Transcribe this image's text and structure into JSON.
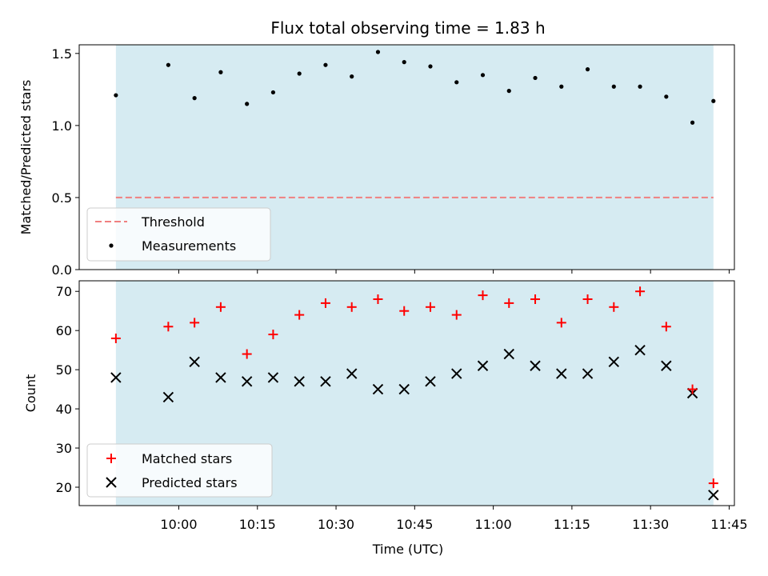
{
  "chart_data": [
    {
      "type": "scatter",
      "title": "Flux total observing time = 1.83 h",
      "xlabel": "",
      "ylabel": "Matched/Predicted stars",
      "ylim": [
        0,
        1.56
      ],
      "yticks": [
        "0.0",
        "0.5",
        "1.0",
        "1.5"
      ],
      "shaded_span": {
        "start": "09:48",
        "end": "11:42",
        "color": "#add8e6"
      },
      "threshold": {
        "name": "Threshold",
        "value": 0.5,
        "color": "#f08080",
        "style": "dashed"
      },
      "x": [
        "09:48",
        "09:58",
        "10:03",
        "10:08",
        "10:13",
        "10:18",
        "10:23",
        "10:28",
        "10:33",
        "10:38",
        "10:43",
        "10:48",
        "10:53",
        "10:58",
        "11:03",
        "11:08",
        "11:13",
        "11:18",
        "11:23",
        "11:28",
        "11:33",
        "11:38",
        "11:42"
      ],
      "series": [
        {
          "name": "Measurements",
          "color": "#000000",
          "values": [
            1.21,
            1.42,
            1.19,
            1.37,
            1.15,
            1.23,
            1.36,
            1.42,
            1.34,
            1.51,
            1.44,
            1.41,
            1.3,
            1.35,
            1.24,
            1.33,
            1.27,
            1.39,
            1.27,
            1.27,
            1.2,
            1.02,
            1.17
          ]
        }
      ],
      "legend": {
        "placement": "lower-left",
        "entries": [
          "Threshold",
          "Measurements"
        ]
      }
    },
    {
      "type": "scatter",
      "title": "",
      "xlabel": "Time (UTC)",
      "ylabel": "Count",
      "ylim": [
        15.3,
        72.7
      ],
      "yticks": [
        "20",
        "30",
        "40",
        "50",
        "60",
        "70"
      ],
      "xticks": [
        "10:00",
        "10:15",
        "10:30",
        "10:45",
        "11:00",
        "11:15",
        "11:30",
        "11:45"
      ],
      "xlim": [
        "09:41",
        "11:46"
      ],
      "shaded_span": {
        "start": "09:48",
        "end": "11:42",
        "color": "#add8e6"
      },
      "x": [
        "09:48",
        "09:58",
        "10:03",
        "10:08",
        "10:13",
        "10:18",
        "10:23",
        "10:28",
        "10:33",
        "10:38",
        "10:43",
        "10:48",
        "10:53",
        "10:58",
        "11:03",
        "11:08",
        "11:13",
        "11:18",
        "11:23",
        "11:28",
        "11:33",
        "11:38",
        "11:42"
      ],
      "series": [
        {
          "name": "Matched stars",
          "marker": "plus",
          "color": "#ff0000",
          "values": [
            58,
            61,
            62,
            66,
            54,
            59,
            64,
            67,
            66,
            68,
            65,
            66,
            64,
            69,
            67,
            68,
            62,
            68,
            66,
            70,
            61,
            45,
            21
          ]
        },
        {
          "name": "Predicted stars",
          "marker": "x",
          "color": "#000000",
          "values": [
            48,
            43,
            52,
            48,
            47,
            48,
            47,
            47,
            49,
            45,
            45,
            47,
            49,
            51,
            54,
            51,
            49,
            49,
            52,
            55,
            51,
            44,
            18
          ]
        }
      ],
      "legend": {
        "placement": "lower-left",
        "entries": [
          "Matched stars",
          "Predicted stars"
        ]
      }
    }
  ]
}
